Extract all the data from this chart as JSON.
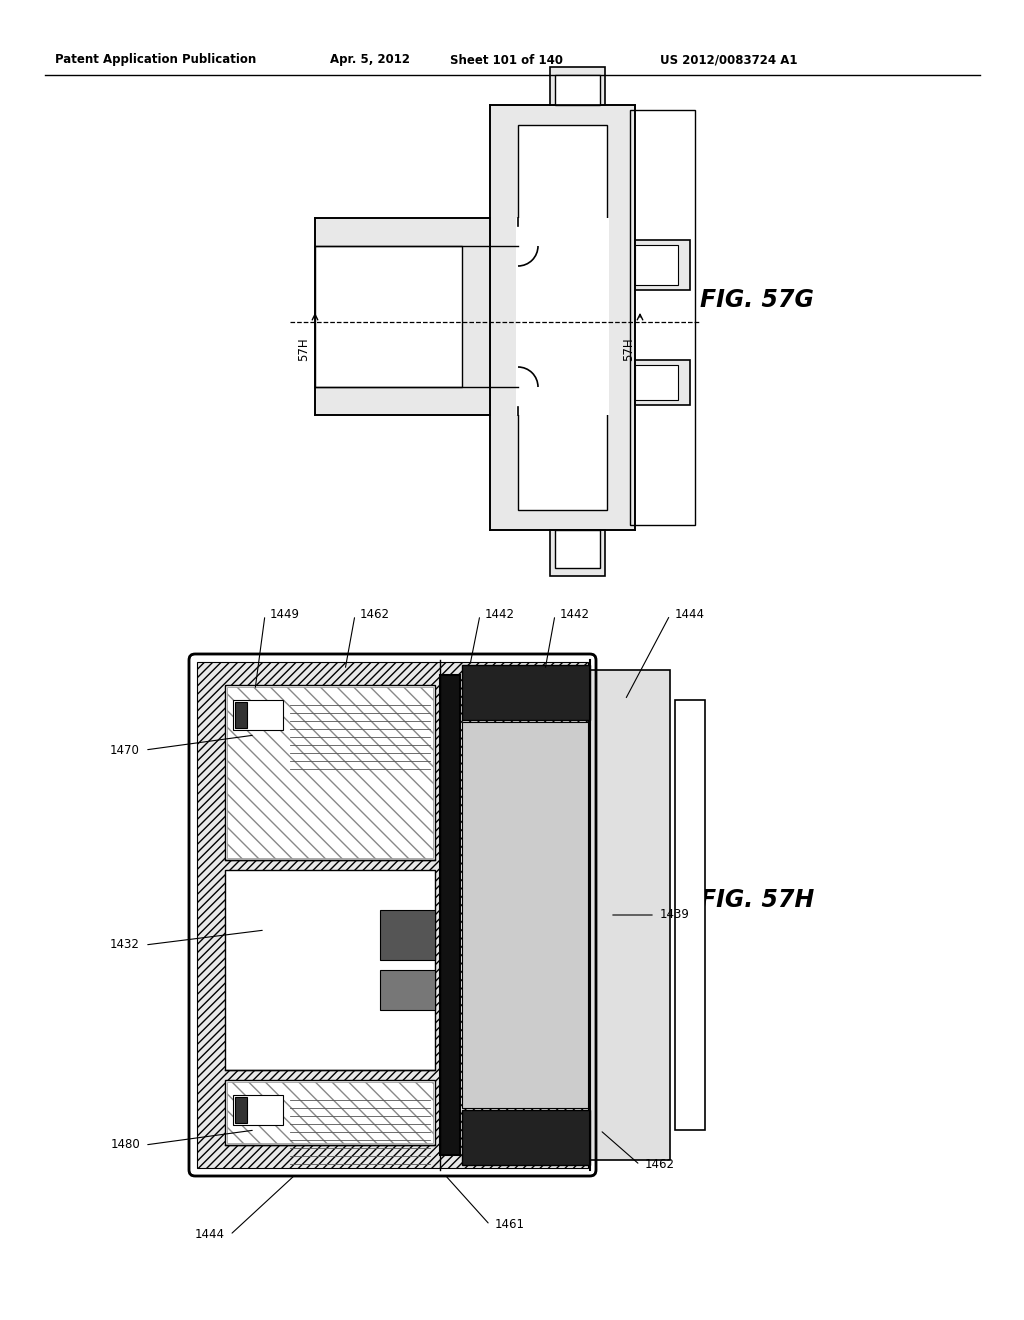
{
  "bg_color": "#ffffff",
  "header_text": "Patent Application Publication",
  "header_date": "Apr. 5, 2012",
  "header_sheet": "Sheet 101 of 140",
  "header_patent": "US 2012/0083724 A1",
  "fig1_label": "FIG. 57G",
  "fig2_label": "FIG. 57H"
}
